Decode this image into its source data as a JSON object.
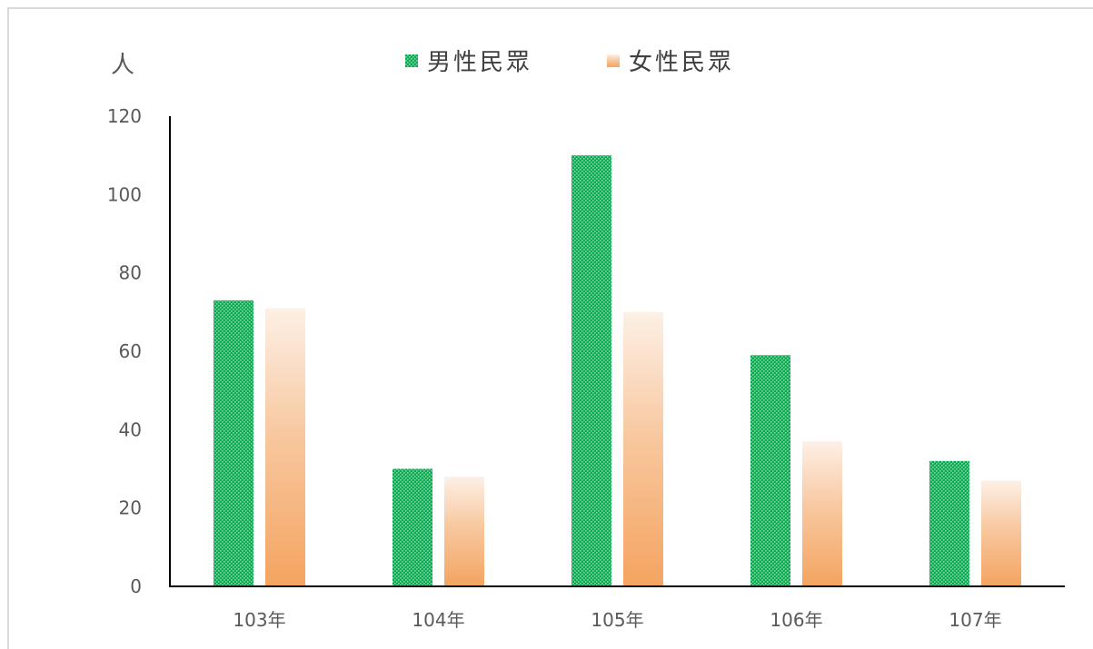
{
  "chart_data": {
    "type": "bar",
    "unit_label": "人",
    "categories": [
      "103年",
      "104年",
      "105年",
      "106年",
      "107年"
    ],
    "series": [
      {
        "name": "男性民眾",
        "values": [
          73,
          30,
          110,
          59,
          32
        ],
        "color": "#00b050"
      },
      {
        "name": "女性民眾",
        "values": [
          71,
          28,
          70,
          37,
          27
        ],
        "color": "#f4a460"
      }
    ],
    "y_ticks": [
      "0",
      "20",
      "40",
      "60",
      "80",
      "100",
      "120"
    ],
    "ylim": [
      0,
      120
    ],
    "grid": false,
    "legend_position": "top"
  }
}
